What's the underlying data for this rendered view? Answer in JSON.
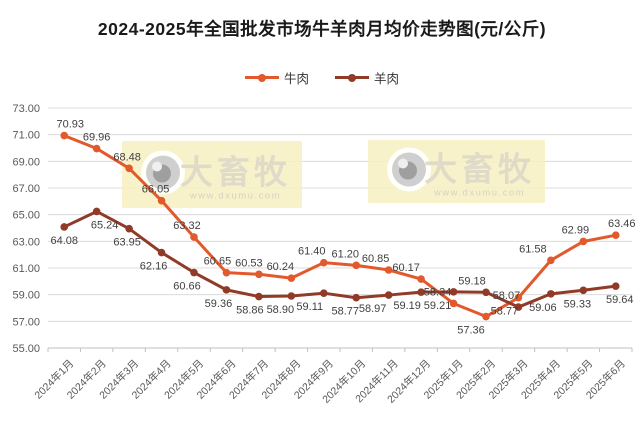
{
  "chart_data": {
    "type": "line",
    "title": "2024-2025年全国批发市场牛羊肉月均价走势图(元/公斤)",
    "unit": "元/公斤",
    "legend_position": "top",
    "grid": "horizontal",
    "ylim": [
      55,
      73
    ],
    "yticks": [
      55,
      57,
      59,
      61,
      63,
      65,
      67,
      69,
      71,
      73
    ],
    "ytick_format_decimals": 2,
    "label_decimals": 2,
    "categories": [
      "2024年1月",
      "2024年2月",
      "2024年3月",
      "2024年4月",
      "2024年5月",
      "2024年6月",
      "2024年7月",
      "2024年8月",
      "2024年9月",
      "2024年10月",
      "2024年11月",
      "2024年12月",
      "2025年1月",
      "2025年2月",
      "2025年3月",
      "2025年4月",
      "2025年5月",
      "2025年6月"
    ],
    "series": [
      {
        "name": "牛肉",
        "color": "#E2592C",
        "values": [
          70.93,
          69.96,
          68.48,
          66.05,
          63.32,
          60.65,
          60.53,
          60.24,
          61.4,
          61.2,
          60.85,
          60.17,
          58.34,
          57.36,
          58.77,
          61.58,
          62.99,
          63.46
        ],
        "label_pos": [
          "above",
          "above",
          "above",
          "above",
          "above",
          "above",
          "above",
          "above",
          "above",
          "above",
          "above",
          "above",
          "above",
          "below",
          "below",
          "above",
          "above",
          "above"
        ],
        "label_dx": [
          6,
          0,
          -2,
          -6,
          -7,
          -9,
          -10,
          -11,
          -12,
          -11,
          -13,
          -15,
          -16,
          -15,
          -14,
          -18,
          -8,
          6
        ]
      },
      {
        "name": "羊肉",
        "color": "#913A28",
        "values": [
          64.08,
          65.24,
          63.95,
          62.16,
          60.66,
          59.36,
          58.86,
          58.9,
          59.11,
          58.77,
          58.97,
          59.19,
          59.21,
          59.18,
          58.07,
          59.06,
          59.33,
          59.64
        ],
        "label_pos": [
          "below",
          "below",
          "below",
          "below",
          "below",
          "below",
          "below",
          "below",
          "below",
          "below",
          "below",
          "below",
          "below",
          "above",
          "above",
          "below",
          "below",
          "below"
        ],
        "label_dx": [
          0,
          8,
          -2,
          -8,
          -7,
          -8,
          -9,
          -11,
          -14,
          -11,
          -16,
          -14,
          -16,
          -14,
          -12,
          -8,
          -6,
          4
        ]
      }
    ],
    "colors": {
      "gridline": "#DCDCDC",
      "axis": "#C0C0C0",
      "axis_text": "#595959",
      "data_label": "#3F3F3F",
      "title_text": "#1A1A1A"
    },
    "watermark": {
      "brand": "大畜牧",
      "url": "www.dxumu.com",
      "bg": "#F6F0C3",
      "brand_color": "#DFD9C7",
      "url_color": "#D6CFBE",
      "instances": 2
    }
  }
}
